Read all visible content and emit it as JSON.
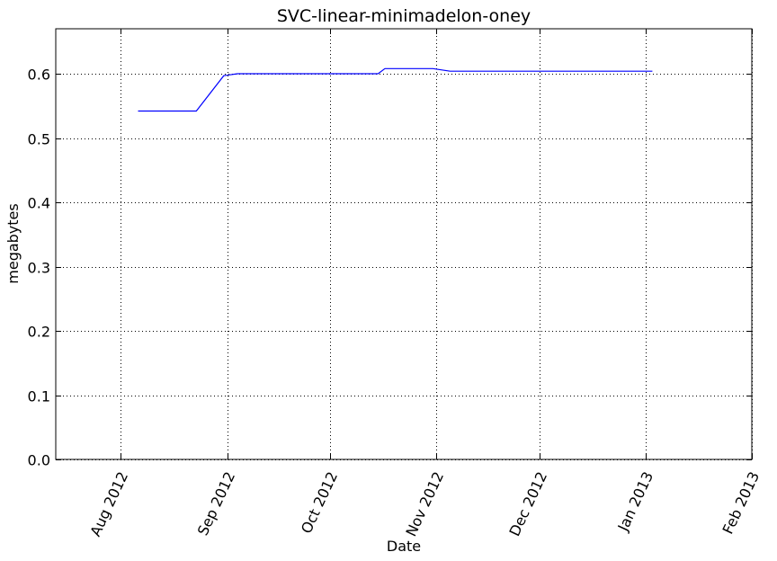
{
  "chart_data": {
    "type": "line",
    "title": "SVC-linear-minimadelon-oney",
    "xlabel": "Date",
    "ylabel": "megabytes",
    "x_axis": "date",
    "xlim": [
      "2012-07-13",
      "2013-02-01"
    ],
    "ylim": [
      0,
      0.67
    ],
    "xticks": [
      {
        "date": "2012-08-01",
        "label": "Aug 2012"
      },
      {
        "date": "2012-09-01",
        "label": "Sep 2012"
      },
      {
        "date": "2012-10-01",
        "label": "Oct 2012"
      },
      {
        "date": "2012-11-01",
        "label": "Nov 2012"
      },
      {
        "date": "2012-12-01",
        "label": "Dec 2012"
      },
      {
        "date": "2013-01-01",
        "label": "Jan 2013"
      },
      {
        "date": "2013-02-01",
        "label": "Feb 2013"
      }
    ],
    "yticks": [
      {
        "value": 0.0,
        "label": "0.0"
      },
      {
        "value": 0.1,
        "label": "0.1"
      },
      {
        "value": 0.2,
        "label": "0.2"
      },
      {
        "value": 0.3,
        "label": "0.3"
      },
      {
        "value": 0.4,
        "label": "0.4"
      },
      {
        "value": 0.5,
        "label": "0.5"
      },
      {
        "value": 0.6,
        "label": "0.6"
      }
    ],
    "grid": true,
    "series": [
      {
        "color": "#0000ff",
        "points": [
          {
            "x": "2012-08-06",
            "y": 0.542
          },
          {
            "x": "2012-08-23",
            "y": 0.542
          },
          {
            "x": "2012-08-31",
            "y": 0.597
          },
          {
            "x": "2012-09-04",
            "y": 0.6
          },
          {
            "x": "2012-09-14",
            "y": 0.6
          },
          {
            "x": "2012-10-01",
            "y": 0.6
          },
          {
            "x": "2012-10-15",
            "y": 0.6
          },
          {
            "x": "2012-10-17",
            "y": 0.608
          },
          {
            "x": "2012-10-31",
            "y": 0.608
          },
          {
            "x": "2012-11-05",
            "y": 0.604
          },
          {
            "x": "2012-12-01",
            "y": 0.604
          },
          {
            "x": "2013-01-03",
            "y": 0.604
          }
        ]
      }
    ]
  }
}
